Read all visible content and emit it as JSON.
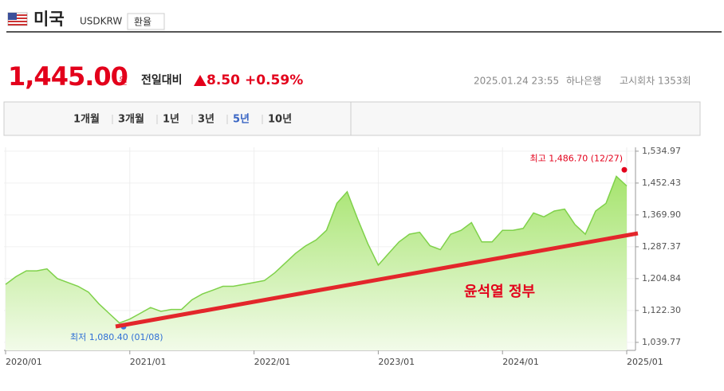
{
  "header": {
    "title": "미국",
    "code": "USDKRW",
    "button": "환율",
    "price": "1,445.00",
    "unit": "원",
    "change_label": "전일대비",
    "change": "8.50",
    "change_pct": "+0.59%",
    "datetime": "2025.01.24 23:55",
    "bank": "하나은행",
    "round": "고시회차 1353회"
  },
  "tabs": [
    "1개월",
    "3개월",
    "1년",
    "3년",
    "5년",
    "10년"
  ],
  "active_tab": 4,
  "chart_data": {
    "type": "area",
    "color": "#7fd14a",
    "grid": true,
    "categories": [
      "2020/01",
      null,
      null,
      null,
      null,
      null,
      null,
      null,
      null,
      null,
      null,
      null,
      "2021/01",
      null,
      null,
      null,
      null,
      null,
      null,
      null,
      null,
      null,
      null,
      null,
      "2022/01",
      null,
      null,
      null,
      null,
      null,
      null,
      null,
      null,
      null,
      null,
      null,
      "2023/01",
      null,
      null,
      null,
      null,
      null,
      null,
      null,
      null,
      null,
      null,
      null,
      "2024/01",
      null,
      null,
      null,
      null,
      null,
      null,
      null,
      null,
      null,
      null,
      null,
      "2025/01"
    ],
    "values": [
      1190,
      1210,
      1225,
      1225,
      1230,
      1205,
      1195,
      1185,
      1170,
      1140,
      1115,
      1090,
      1100,
      1115,
      1130,
      1120,
      1125,
      1125,
      1150,
      1165,
      1175,
      1185,
      1185,
      1190,
      1195,
      1200,
      1220,
      1245,
      1270,
      1290,
      1305,
      1330,
      1400,
      1430,
      1360,
      1295,
      1240,
      1270,
      1300,
      1320,
      1325,
      1290,
      1280,
      1320,
      1330,
      1350,
      1300,
      1300,
      1330,
      1330,
      1335,
      1375,
      1365,
      1380,
      1385,
      1345,
      1320,
      1380,
      1400,
      1470,
      1445
    ],
    "ylim": [
      1019,
      1545
    ],
    "yticks": [
      {
        "value": 1039.77,
        "label": "1,039.77"
      },
      {
        "value": 1122.3,
        "label": "1,122.30"
      },
      {
        "value": 1204.84,
        "label": "1,204.84"
      },
      {
        "value": 1287.37,
        "label": "1,287.37"
      },
      {
        "value": 1369.9,
        "label": "1,369.90"
      },
      {
        "value": 1452.43,
        "label": "1,452.43"
      },
      {
        "value": 1534.97,
        "label": "1,534.97"
      }
    ],
    "high": {
      "value": 1486.7,
      "label": "최고 1,486.70 (12/27)"
    },
    "low": {
      "value": 1080.4,
      "label": "최저 1,080.40 (01/08)"
    },
    "annotation": "윤석열 정부"
  }
}
